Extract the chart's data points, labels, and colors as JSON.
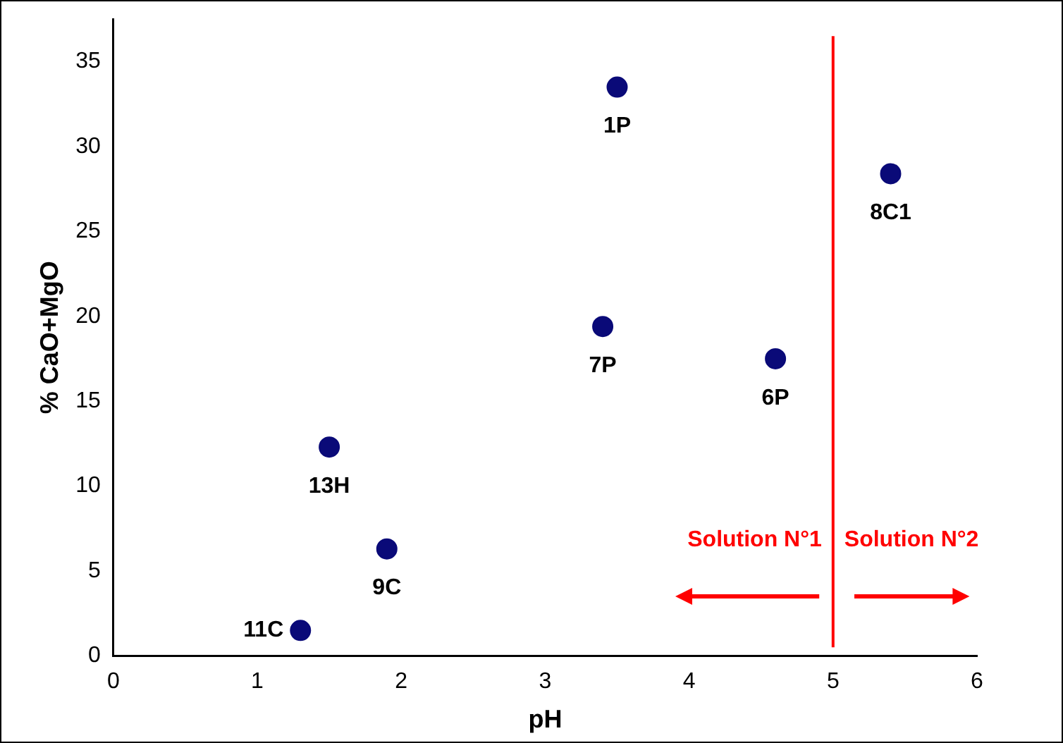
{
  "chart_data": {
    "type": "scatter",
    "xlabel": "pH",
    "ylabel": "% CaO+MgO",
    "x": [
      3.5,
      5.4,
      3.4,
      4.6,
      1.5,
      1.9,
      1.3
    ],
    "values": [
      33.5,
      28.4,
      19.4,
      17.5,
      12.3,
      6.3,
      1.5
    ],
    "color": "#0a0a78",
    "marker": "circle",
    "xlim": [
      0,
      6
    ],
    "xticks": [
      0,
      1,
      2,
      3,
      4,
      5,
      6
    ],
    "ylim": [
      0,
      37.5
    ],
    "yticks": [
      0,
      5,
      10,
      15,
      20,
      25,
      30,
      35
    ],
    "grid": false,
    "legend": false,
    "ref_lines": [
      {
        "axis": "x",
        "value": 5,
        "color": "#ff0000"
      }
    ],
    "annotations": [
      {
        "text": "1P",
        "x": 3.5,
        "y": 33.5
      },
      {
        "text": "8C1",
        "x": 5.4,
        "y": 28.4
      },
      {
        "text": "7P",
        "x": 3.4,
        "y": 19.4
      },
      {
        "text": "6P",
        "x": 4.6,
        "y": 17.5
      },
      {
        "text": "13H",
        "x": 1.5,
        "y": 12.3
      },
      {
        "text": "9C",
        "x": 1.9,
        "y": 6.3
      },
      {
        "text": "11C",
        "x": 1.3,
        "y": 1.5
      },
      "Solution N°1",
      "Solution N°2"
    ]
  }
}
